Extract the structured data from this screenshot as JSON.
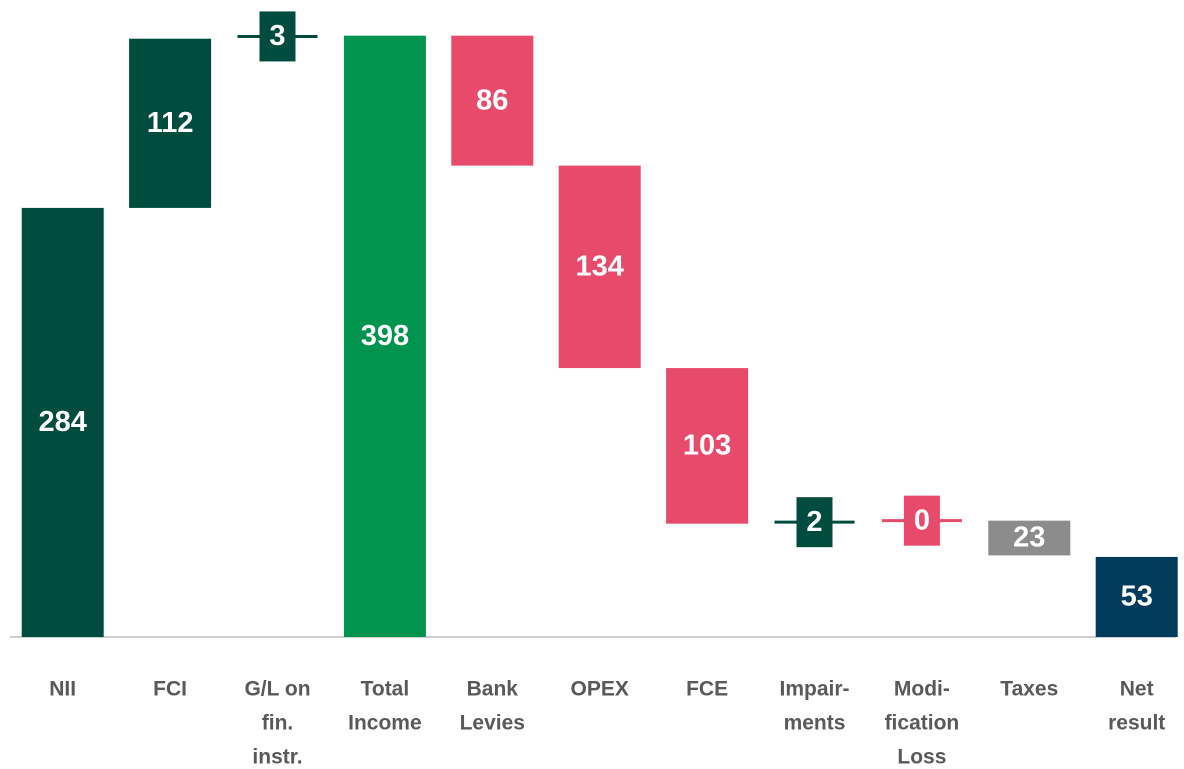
{
  "chart_data": {
    "type": "waterfall",
    "categories": [
      [
        "NII"
      ],
      [
        "FCI"
      ],
      [
        "G/L on",
        "fin.",
        "instr."
      ],
      [
        "Total",
        "Income"
      ],
      [
        "Bank",
        "Levies"
      ],
      [
        "OPEX"
      ],
      [
        "FCE"
      ],
      [
        "Impair-",
        "ments"
      ],
      [
        "Modi-",
        "fication",
        "Loss"
      ],
      [
        "Taxes"
      ],
      [
        "Net",
        "result"
      ]
    ],
    "measure": [
      "absolute",
      "relative",
      "relative",
      "absolute",
      "relative",
      "relative",
      "relative",
      "relative",
      "relative",
      "relative",
      "absolute"
    ],
    "values": [
      284,
      112,
      3,
      398,
      -86,
      -134,
      -103,
      2,
      0,
      -23,
      53
    ],
    "value_labels": [
      "284",
      "112",
      "3",
      "398",
      "86",
      "134",
      "103",
      "2",
      "0",
      "23",
      "53"
    ],
    "colors": [
      "#004c3f",
      "#004c3f",
      "#004c3f",
      "#00944f",
      "#e84a6c",
      "#e84a6c",
      "#e84a6c",
      "#004c3f",
      "#e84a6c",
      "#8c8c8c",
      "#003b5c"
    ],
    "ylim": [
      0,
      415
    ]
  }
}
